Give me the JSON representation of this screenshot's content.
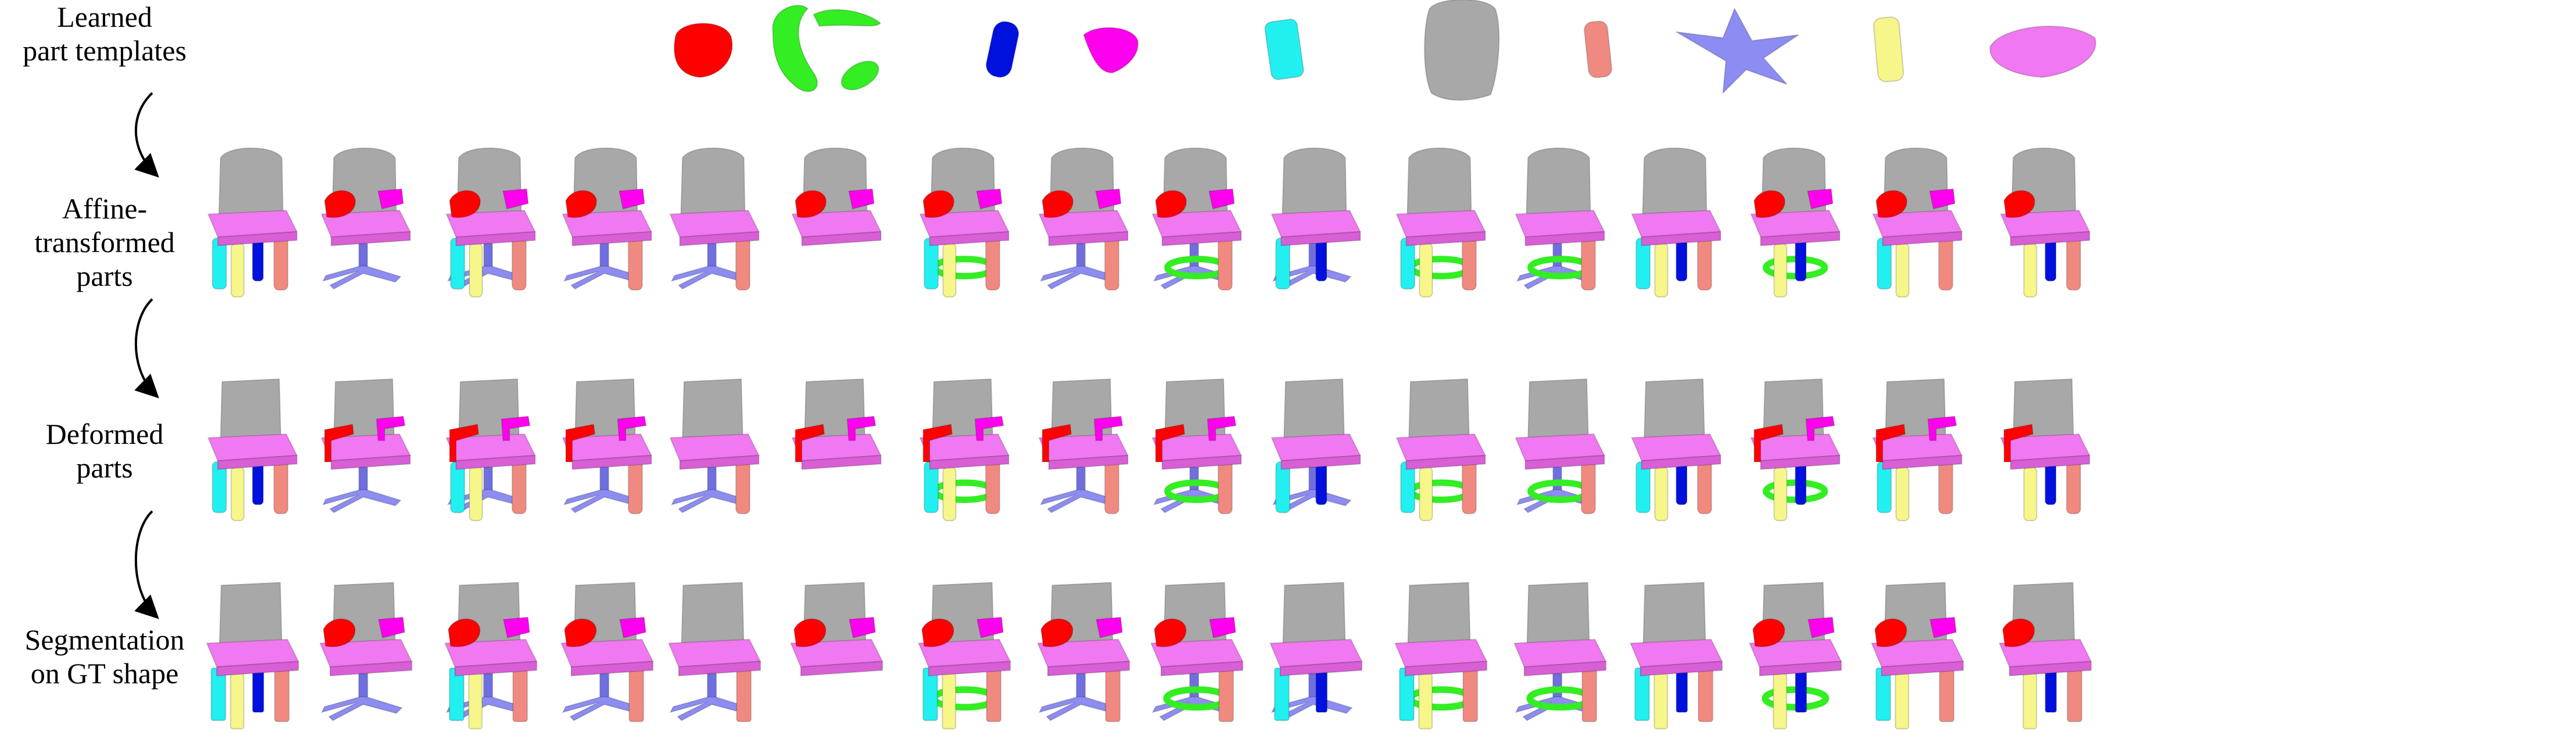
{
  "figure": {
    "row_labels": [
      {
        "lines": [
          "Learned",
          "part templates"
        ]
      },
      {
        "lines": [
          "Affine-",
          "transformed",
          "parts"
        ]
      },
      {
        "lines": [
          "Deformed",
          "parts"
        ]
      },
      {
        "lines": [
          "Segmentation",
          "on GT shape"
        ]
      }
    ],
    "part_palette": {
      "red": "#ff0000",
      "green": "#33ee22",
      "blue": "#0010dd",
      "magenta": "#ff00ee",
      "cyan": "#22f0f0",
      "gray": "#a8a8a8",
      "salmon": "#f08a80",
      "lavender": "#8c8cf2",
      "yellow": "#f6f68a",
      "pink": "#f078f0"
    },
    "template_parts": [
      "red",
      "green",
      "blue",
      "magenta",
      "cyan",
      "gray",
      "salmon",
      "lavender",
      "yellow",
      "pink"
    ],
    "chair_columns": [
      {
        "parts": [
          "gray",
          "pink",
          "cyan",
          "yellow",
          "blue",
          "salmon"
        ]
      },
      {
        "parts": [
          "gray",
          "red",
          "magenta",
          "pink",
          "lavender"
        ]
      },
      {
        "parts": [
          "gray",
          "red",
          "magenta",
          "pink",
          "cyan",
          "yellow",
          "lavender",
          "salmon"
        ]
      },
      {
        "parts": [
          "gray",
          "red",
          "magenta",
          "pink",
          "lavender",
          "salmon"
        ]
      },
      {
        "parts": [
          "gray",
          "pink",
          "lavender",
          "salmon"
        ]
      },
      {
        "parts": [
          "gray",
          "red",
          "magenta",
          "pink"
        ]
      },
      {
        "parts": [
          "gray",
          "red",
          "magenta",
          "pink",
          "cyan",
          "yellow",
          "green",
          "salmon"
        ]
      },
      {
        "parts": [
          "gray",
          "red",
          "magenta",
          "pink",
          "lavender",
          "salmon"
        ]
      },
      {
        "parts": [
          "gray",
          "red",
          "magenta",
          "pink",
          "green",
          "lavender",
          "salmon"
        ]
      },
      {
        "parts": [
          "gray",
          "pink",
          "cyan",
          "lavender",
          "blue"
        ]
      },
      {
        "parts": [
          "gray",
          "pink",
          "cyan",
          "yellow",
          "green",
          "salmon"
        ]
      },
      {
        "parts": [
          "gray",
          "pink",
          "salmon",
          "green",
          "lavender"
        ]
      },
      {
        "parts": [
          "gray",
          "pink",
          "cyan",
          "yellow",
          "blue",
          "salmon"
        ]
      },
      {
        "parts": [
          "gray",
          "red",
          "magenta",
          "pink",
          "green",
          "yellow",
          "blue"
        ]
      },
      {
        "parts": [
          "gray",
          "red",
          "magenta",
          "pink",
          "yellow",
          "cyan",
          "salmon"
        ]
      },
      {
        "parts": [
          "gray",
          "red",
          "pink",
          "blue",
          "salmon",
          "yellow"
        ]
      }
    ]
  }
}
